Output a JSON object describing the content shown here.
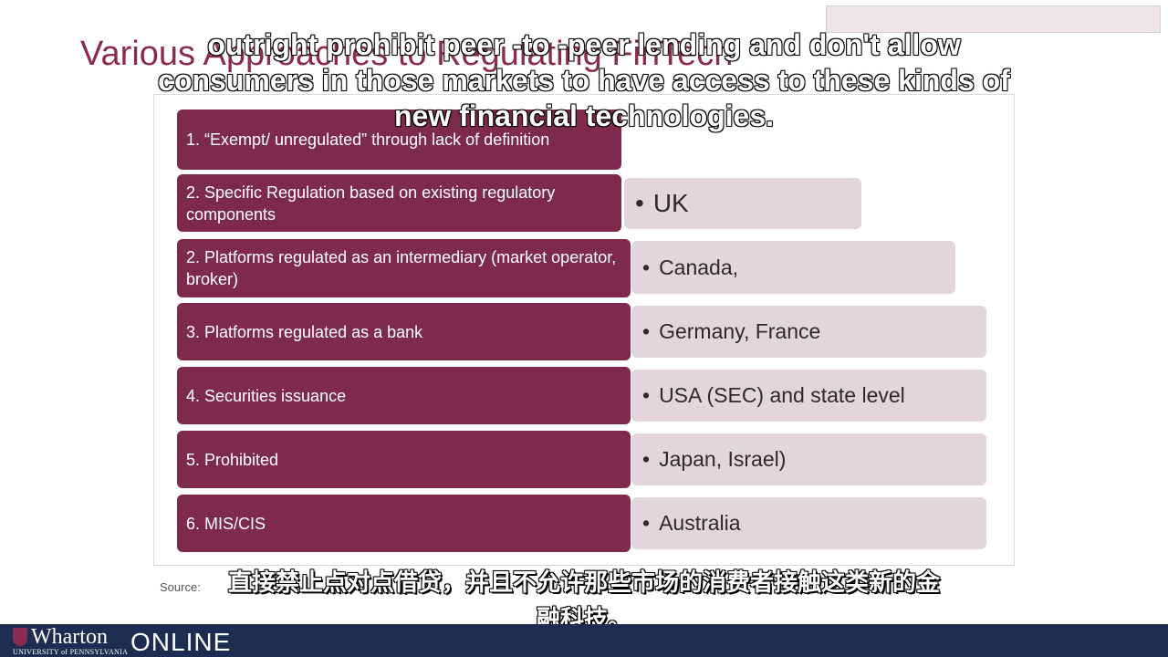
{
  "slide": {
    "title": "Various Approaches to Regulating FinTech",
    "source_label": "Source:"
  },
  "rows": [
    {
      "label": "1. “Exempt/ unregulated” through lack of definition",
      "countries": ""
    },
    {
      "label": "2. Specific Regulation based on existing regulatory components",
      "countries": "UK"
    },
    {
      "label": "2. Platforms regulated as an intermediary (market operator, broker)",
      "countries": "Canada,"
    },
    {
      "label": "3. Platforms regulated as a bank",
      "countries": "Germany, France"
    },
    {
      "label": "4. Securities issuance",
      "countries": "USA (SEC) and state level"
    },
    {
      "label": "5. Prohibited",
      "countries": "Japan, Israel)"
    },
    {
      "label": "6. MIS/CIS",
      "countries": "Australia"
    }
  ],
  "bullet_glyph": "•",
  "subtitles": {
    "en_line1": "outright prohibit peer -to -peer lending and don't allow",
    "en_line2": "consumers in those markets to have access to these kinds of",
    "en_line3": "new financial technologies.",
    "zh_line1": "直接禁止点对点借贷，并且不允许那些市场的消费者接触这类新的金",
    "zh_line2": "融科技。"
  },
  "footer": {
    "brand": "Wharton",
    "brand_sub": "UNIVERSITY of PENNSYLVANIA",
    "product": "ONLINE"
  },
  "colors": {
    "accent": "#7e2a4d",
    "title": "#8a2c4f",
    "country_box": "#e2d6dc",
    "footer_bg": "#1d2d52"
  }
}
